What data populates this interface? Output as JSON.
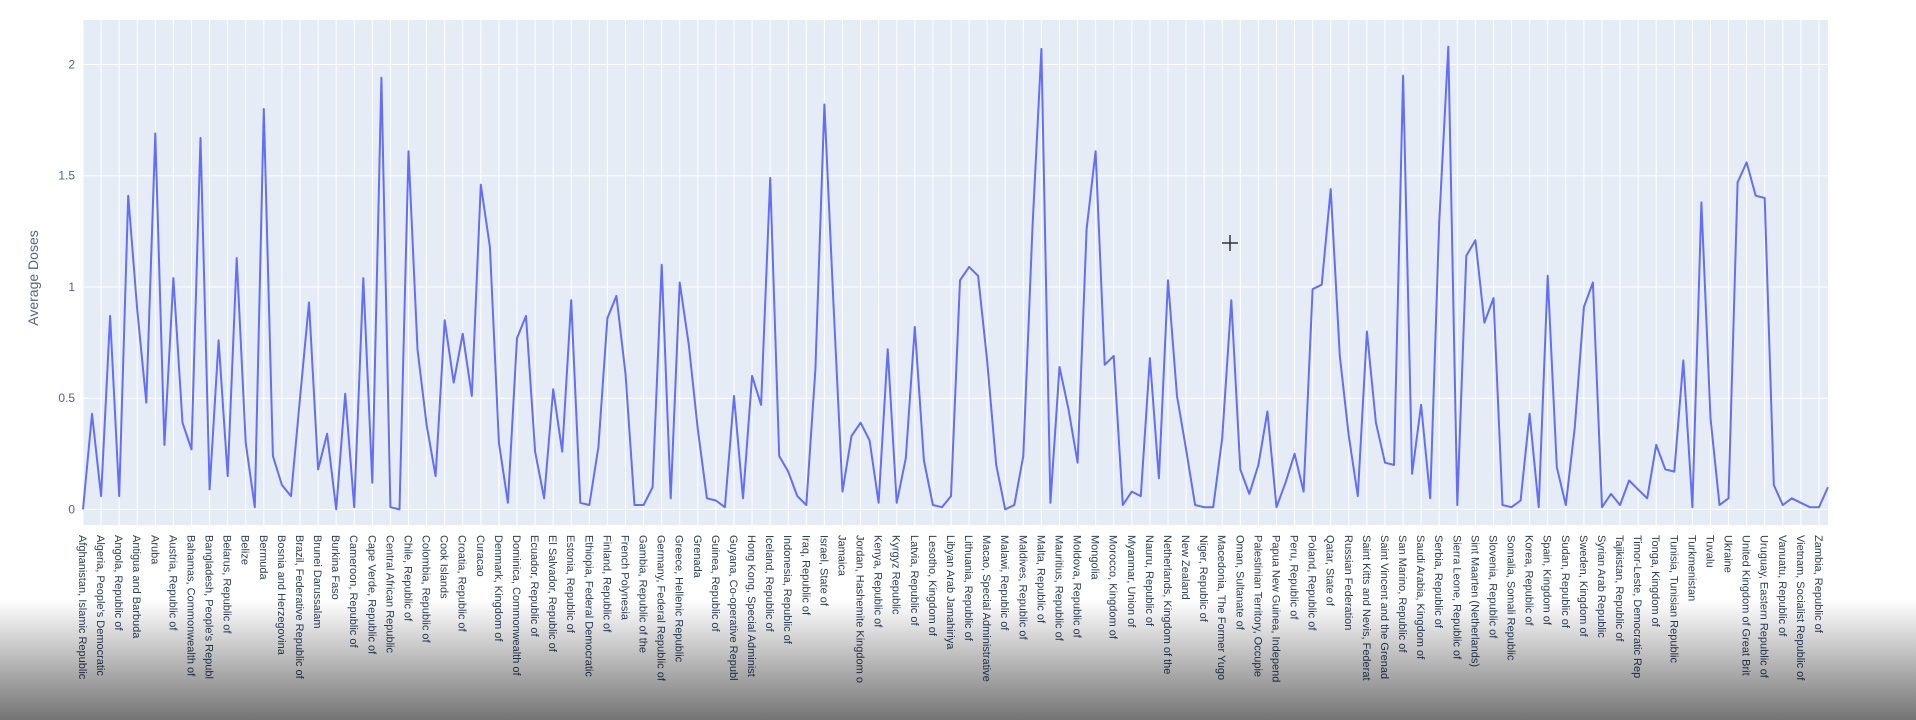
{
  "chart_data": {
    "type": "line",
    "y_label": "Average Doses",
    "color": "#636efa",
    "grid": true,
    "ylim": [
      -0.07,
      2.2
    ],
    "yticks": [
      0,
      0.5,
      1,
      1.5,
      2
    ],
    "categories": [
      "Afghanistan, Islamic Republic",
      null,
      "Algeria, People's Democratic",
      null,
      "Angola, Republic of",
      null,
      "Antigua and Barbuda",
      null,
      "Aruba",
      null,
      "Austria, Republic of",
      null,
      "Bahamas, Commonwealth of",
      null,
      "Bangladesh, People's Republ",
      null,
      "Belarus, Republic of",
      null,
      "Belize",
      null,
      "Bermuda",
      null,
      "Bosnia and Herzegovina",
      null,
      "Brazil, Federative Republic of",
      null,
      "Brunei Darussalam",
      null,
      "Burkina Faso",
      null,
      "Cameroon, Republic of",
      null,
      "Cape Verde, Republic of",
      null,
      "Central African Republic",
      null,
      "Chile, Republic of",
      null,
      "Colombia, Republic of",
      null,
      "Cook Islands",
      null,
      "Croatia, Republic of",
      null,
      "Curacao",
      null,
      "Denmark, Kingdom of",
      null,
      "Dominica, Commonwealth of",
      null,
      "Ecuador, Republic of",
      null,
      "El Salvador, Republic of",
      null,
      "Estonia, Republic of",
      null,
      "Ethiopia, Federal Democratic",
      null,
      "Finland, Republic of",
      null,
      "French Polynesia",
      null,
      "Gambia, Republic of the",
      null,
      "Germany, Federal Republic of",
      null,
      "Greece, Hellenic Republic",
      null,
      "Grenada",
      null,
      "Guinea, Republic of",
      null,
      "Guyana, Co-operative Republ",
      null,
      "Hong Kong, Special Administ",
      null,
      "Iceland, Republic of",
      null,
      "Indonesia, Republic of",
      null,
      "Iraq, Republic of",
      null,
      "Israel, State of",
      null,
      "Jamaica",
      null,
      "Jordan, Hashemite Kingdom o",
      null,
      "Kenya, Republic of",
      null,
      "Kyrgyz Republic",
      null,
      "Latvia, Republic of",
      null,
      "Lesotho, Kingdom of",
      null,
      "Libyan Arab Jamahiriya",
      null,
      "Lithuania, Republic of",
      null,
      "Macao, Special Administrative",
      null,
      "Malawi, Republic of",
      null,
      "Maldives, Republic of",
      null,
      "Malta, Republic of",
      null,
      "Mauritius, Republic of",
      null,
      "Moldova, Republic of",
      null,
      "Mongolia",
      null,
      "Morocco, Kingdom of",
      null,
      "Myanmar, Union of",
      null,
      "Nauru, Republic of",
      null,
      "Netherlands, Kingdom of the",
      null,
      "New Zealand",
      null,
      "Niger, Republic of",
      null,
      "Macedonia, The Former Yugo",
      null,
      "Oman, Sultanate of",
      null,
      "Palestinian Territory, Occupie",
      null,
      "Papua New Guinea, Independ",
      null,
      "Peru, Republic of",
      null,
      "Poland, Republic of",
      null,
      "Qatar, State of",
      null,
      "Russian Federation",
      null,
      "Saint Kitts and Nevis, Federat",
      null,
      "Saint Vincent and the Grenad",
      null,
      "San Marino, Republic of",
      null,
      "Saudi Arabia, Kingdom of",
      null,
      "Serbia, Republic of",
      null,
      "Sierra Leone, Republic of",
      null,
      "Sint Maarten (Netherlands)",
      null,
      "Slovenia, Republic of",
      null,
      "Somalia, Somali Republic",
      null,
      "Korea, Republic of",
      null,
      "Spain, Kingdom of",
      null,
      "Sudan, Republic of",
      null,
      "Sweden, Kingdom of",
      null,
      "Syrian Arab Republic",
      null,
      "Tajikistan, Republic of",
      null,
      "Timor-Leste, Democratic Rep",
      null,
      "Tonga, Kingdom of",
      null,
      "Tunisia, Tunisian Republic",
      null,
      "Turkmenistan",
      null,
      "Tuvalu",
      null,
      "Ukraine",
      null,
      "United Kingdom of Great Brit",
      null,
      "Uruguay, Eastern Republic of",
      null,
      "Vanuatu, Republic of",
      null,
      "Vietnam, Socialist Republic of",
      null,
      "Zambia, Republic of",
      null
    ],
    "values": [
      0.0,
      0.43,
      0.06,
      0.87,
      0.06,
      1.41,
      0.9,
      0.48,
      1.69,
      0.29,
      1.04,
      0.39,
      0.27,
      1.67,
      0.09,
      0.76,
      0.15,
      1.13,
      0.3,
      0.01,
      1.8,
      0.24,
      0.11,
      0.06,
      0.5,
      0.93,
      0.18,
      0.34,
      0.0,
      0.52,
      0.01,
      1.04,
      0.12,
      1.94,
      0.01,
      0.0,
      1.61,
      0.72,
      0.38,
      0.15,
      0.85,
      0.57,
      0.79,
      0.51,
      1.46,
      1.18,
      0.3,
      0.03,
      0.77,
      0.87,
      0.26,
      0.05,
      0.54,
      0.26,
      0.94,
      0.03,
      0.02,
      0.28,
      0.86,
      0.96,
      0.61,
      0.02,
      0.02,
      0.1,
      1.1,
      0.05,
      1.02,
      0.74,
      0.36,
      0.05,
      0.04,
      0.01,
      0.51,
      0.05,
      0.6,
      0.47,
      1.49,
      0.24,
      0.17,
      0.06,
      0.02,
      0.63,
      1.82,
      0.93,
      0.08,
      0.33,
      0.39,
      0.31,
      0.03,
      0.72,
      0.03,
      0.23,
      0.82,
      0.22,
      0.02,
      0.01,
      0.06,
      1.03,
      1.09,
      1.05,
      0.67,
      0.2,
      0.0,
      0.02,
      0.24,
      1.26,
      2.07,
      0.03,
      0.64,
      0.45,
      0.21,
      1.26,
      1.61,
      0.65,
      0.69,
      0.02,
      0.08,
      0.06,
      0.68,
      0.14,
      1.03,
      0.51,
      0.27,
      0.02,
      0.01,
      0.01,
      0.32,
      0.94,
      0.18,
      0.07,
      0.2,
      0.44,
      0.01,
      0.12,
      0.25,
      0.08,
      0.99,
      1.01,
      1.44,
      0.69,
      0.33,
      0.06,
      0.8,
      0.39,
      0.21,
      0.2,
      1.95,
      0.16,
      0.47,
      0.05,
      1.29,
      2.08,
      0.02,
      1.14,
      1.21,
      0.84,
      0.95,
      0.02,
      0.01,
      0.04,
      0.43,
      0.01,
      1.05,
      0.19,
      0.02,
      0.37,
      0.91,
      1.02,
      0.01,
      0.07,
      0.02,
      0.13,
      0.09,
      0.05,
      0.29,
      0.18,
      0.17,
      0.67,
      0.01,
      1.38,
      0.41,
      0.02,
      0.05,
      1.47,
      1.56,
      1.41,
      1.4,
      0.11,
      0.02,
      0.05,
      0.03,
      0.01,
      0.01,
      0.1
    ]
  }
}
